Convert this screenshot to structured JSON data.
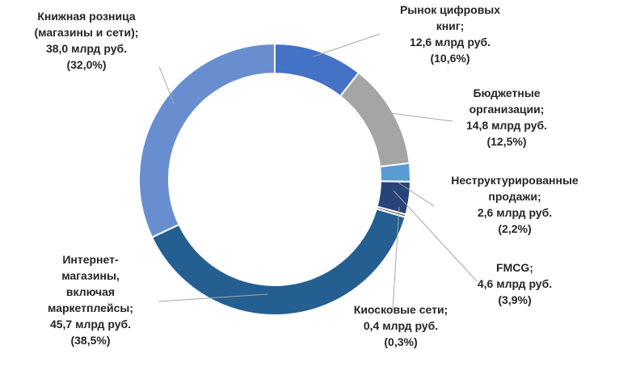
{
  "chart_data": {
    "type": "pie",
    "donut": true,
    "title": "",
    "unit": "млрд руб.",
    "slices": [
      {
        "name": "Рынок цифровых книг",
        "value": 12.6,
        "percent": 10.6,
        "color": "#4472C4",
        "label_lines": [
          "Рынок цифровых",
          "книг;",
          "12,6 млрд руб.",
          "(10,6%)"
        ]
      },
      {
        "name": "Бюджетные организации",
        "value": 14.8,
        "percent": 12.5,
        "color": "#A5A5A5",
        "label_lines": [
          "Бюджетные",
          "организации;",
          "14,8 млрд руб.",
          "(12,5%)"
        ]
      },
      {
        "name": "Неструктурированные продажи",
        "value": 2.6,
        "percent": 2.2,
        "color": "#5B9BD5",
        "label_lines": [
          "Неструктурированные",
          "продажи;",
          "2,6 млрд руб.",
          "(2,2%)"
        ]
      },
      {
        "name": "FMCG",
        "value": 4.6,
        "percent": 3.9,
        "color": "#264478",
        "label_lines": [
          "FMCG;",
          "4,6 млрд руб.",
          "(3,9%)"
        ]
      },
      {
        "name": "Киосковые сети",
        "value": 0.4,
        "percent": 0.3,
        "color": "#636363",
        "label_lines": [
          "Киосковые сети;",
          "0,4 млрд руб.",
          "(0,3%)"
        ]
      },
      {
        "name": "Интернет-магазины, включая маркетплейсы",
        "value": 45.7,
        "percent": 38.5,
        "color": "#255E91",
        "label_lines": [
          "Интернет-",
          "магазины,",
          "включая",
          "маркетплейсы;",
          "45,7 млрд руб.",
          "(38,5%)"
        ]
      },
      {
        "name": "Книжная розница (магазины и сети)",
        "value": 38.0,
        "percent": 32.0,
        "color": "#698ED0",
        "label_lines": [
          "Книжная розница",
          "(магазины и сети);",
          "38,0 млрд руб.",
          "(32,0%)"
        ]
      }
    ]
  }
}
